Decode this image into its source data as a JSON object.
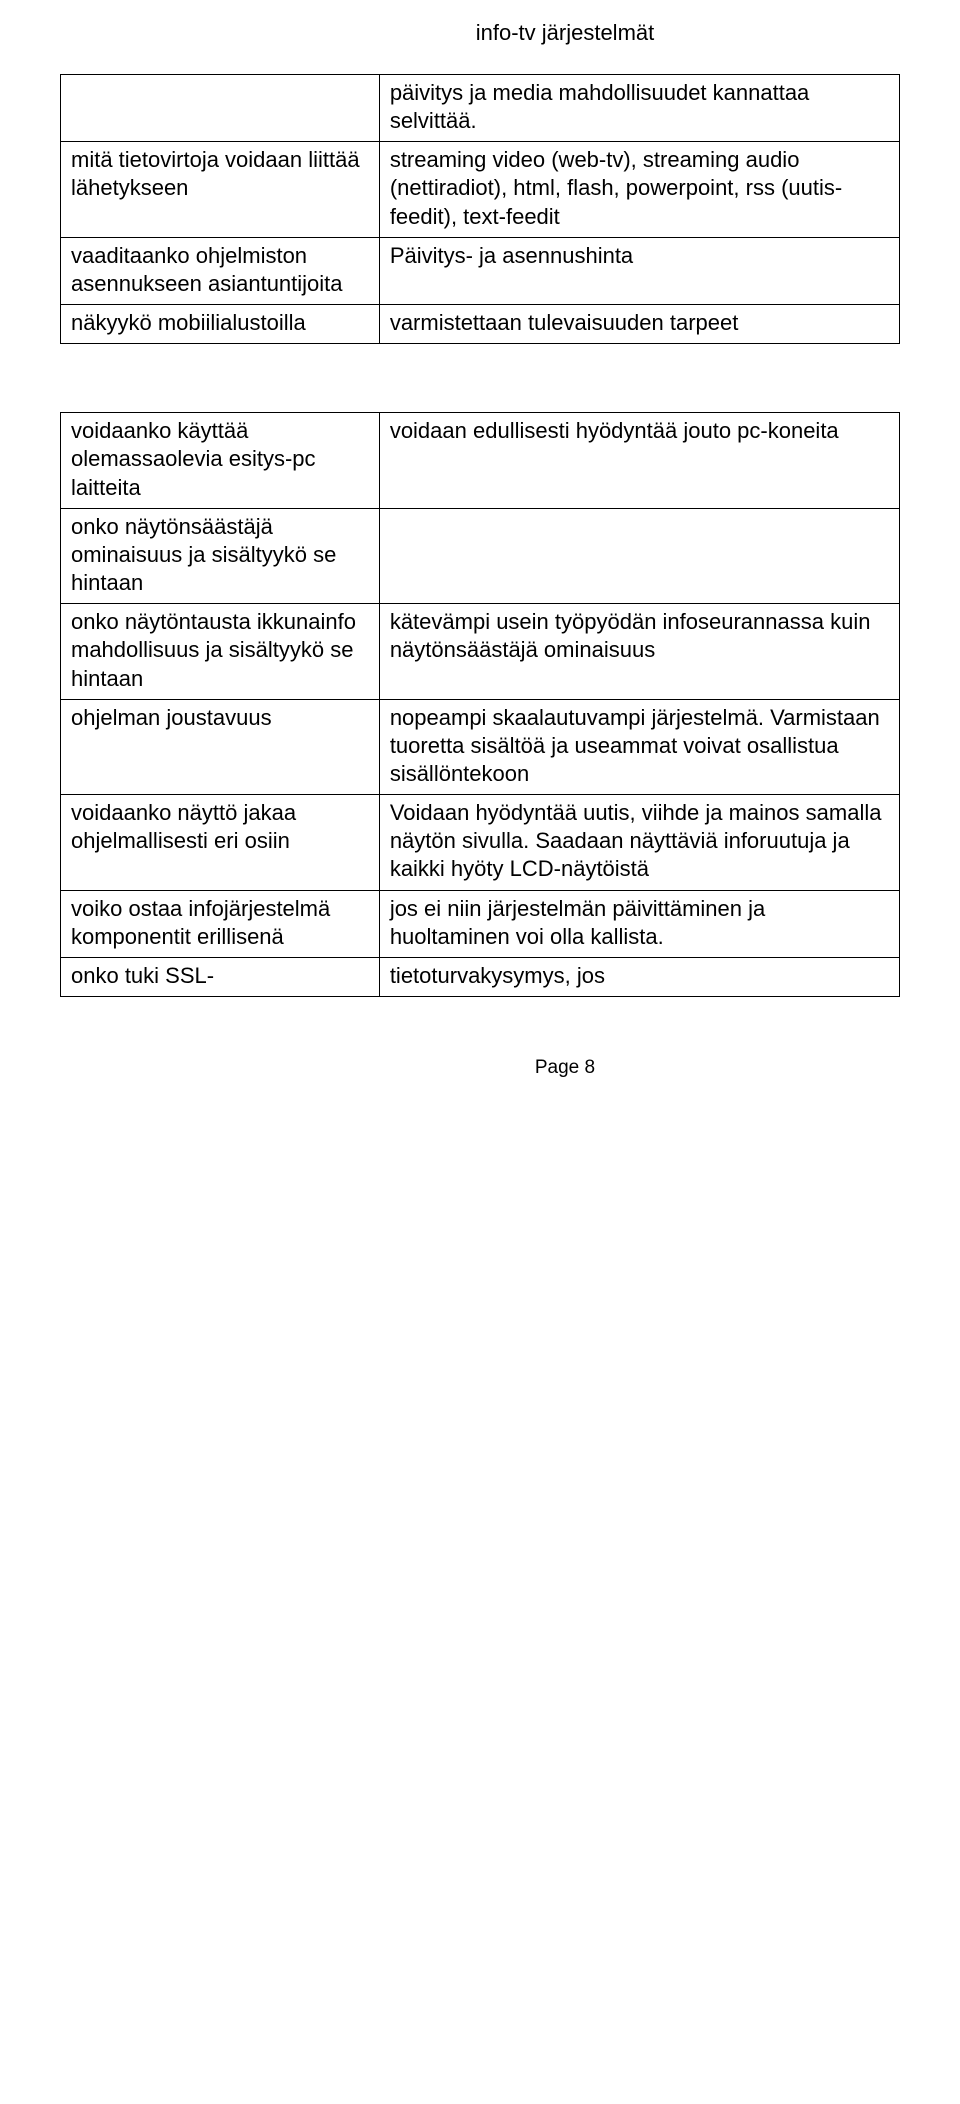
{
  "header_title": "info-tv järjestelmät",
  "footer_text": "Page 8",
  "colors": {
    "text": "#000000",
    "background": "#ffffff",
    "border": "#000000"
  },
  "typography": {
    "font_family": "Arial",
    "body_fontsize_pt": 16,
    "header_fontsize_pt": 16
  },
  "table1": {
    "rows": [
      {
        "left": "",
        "right": "päivitys ja media mahdollisuudet kannattaa selvittää."
      },
      {
        "left": "mitä tietovirtoja voidaan liittää lähetykseen",
        "right": "streaming video (web-tv), streaming audio (nettiradiot), html, flash, powerpoint,  rss (uutis- feedit), text-feedit"
      },
      {
        "left": "vaaditaanko ohjelmiston asennukseen asiantuntijoita",
        "right": "Päivitys- ja asennushinta"
      },
      {
        "left": "näkyykö mobiilialustoilla",
        "right": "varmistettaan tulevaisuuden tarpeet"
      }
    ]
  },
  "table2": {
    "rows": [
      {
        "left": "voidaanko käyttää olemassaolevia esitys-pc laitteita",
        "right": "voidaan edullisesti hyödyntää jouto pc-koneita"
      },
      {
        "left": "onko näytönsäästäjä ominaisuus ja sisältyykö se hintaan",
        "right": ""
      },
      {
        "left": "onko näytöntausta ikkunainfo mahdollisuus ja sisältyykö se hintaan",
        "right": "kätevämpi usein työpyödän infoseurannassa kuin näytönsäästäjä ominaisuus"
      },
      {
        "left": "ohjelman joustavuus",
        "right": "nopeampi skaalautuvampi järjestelmä. Varmistaan tuoretta sisältöä ja useammat voivat osallistua sisällöntekoon"
      },
      {
        "left": "voidaanko  näyttö jakaa ohjelmallisesti eri osiin",
        "right": "Voidaan hyödyntää uutis, viihde ja mainos samalla näytön sivulla. Saadaan näyttäviä inforuutuja ja kaikki hyöty LCD-näytöistä"
      },
      {
        "left": "voiko ostaa infojärjestelmä komponentit erillisenä",
        "right": "jos ei niin järjestelmän päivittäminen ja huoltaminen voi olla kallista."
      },
      {
        "left": "onko tuki SSL-",
        "right": "tietoturvakysymys, jos"
      }
    ]
  }
}
